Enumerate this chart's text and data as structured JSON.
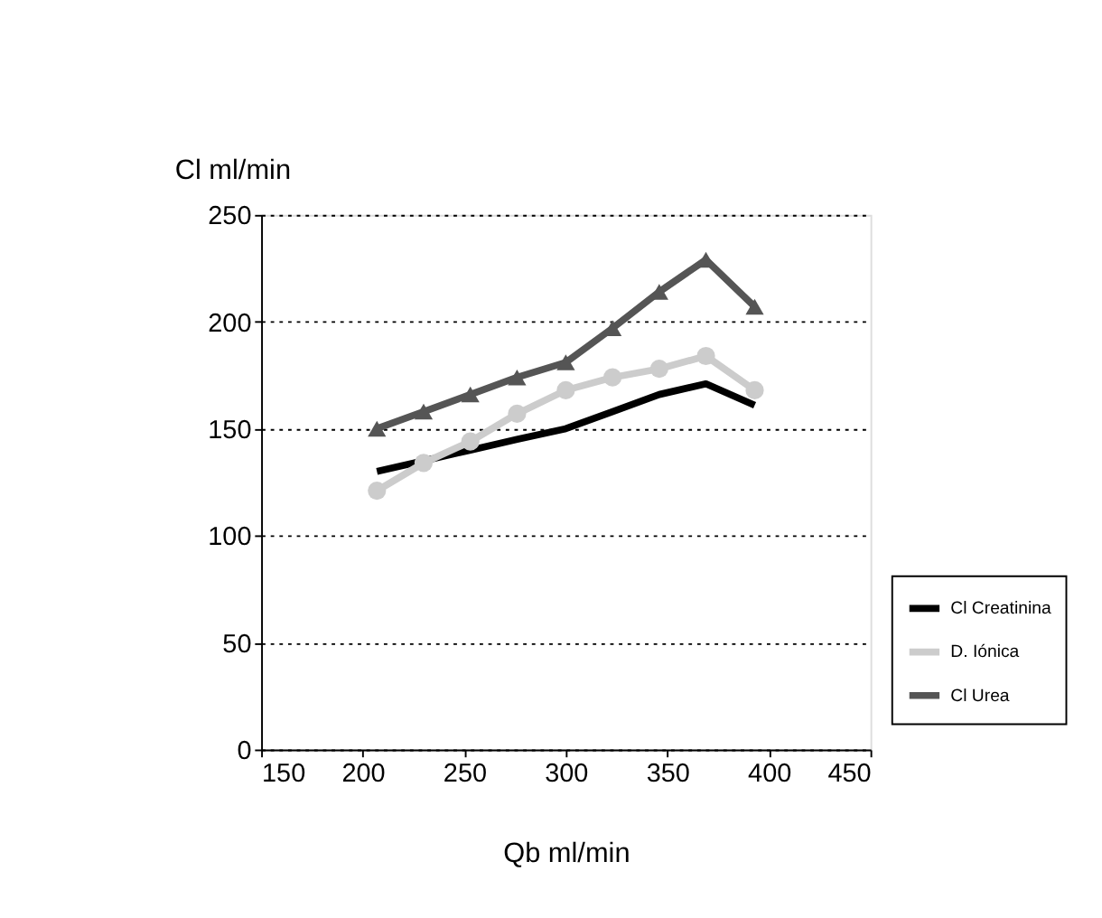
{
  "chart_data": {
    "type": "line",
    "xlabel": "Qb ml/min",
    "ylabel": "Cl ml/min",
    "x": [
      207,
      230,
      253,
      276,
      300,
      323,
      346,
      369,
      393
    ],
    "xlim": [
      150,
      450
    ],
    "xticks": [
      150,
      200,
      250,
      300,
      350,
      400,
      450
    ],
    "ylim": [
      0,
      250
    ],
    "yticks": [
      0,
      50,
      100,
      150,
      200,
      250
    ],
    "grid": "y",
    "legend": "right",
    "line_style": "solid",
    "series": [
      {
        "name": "Cl Creatinina",
        "color": "#000000",
        "marker": "none",
        "values": [
          130,
          135,
          140,
          145,
          150,
          158,
          166,
          171,
          161
        ]
      },
      {
        "name": "D. Iónica",
        "color": "#cccccc",
        "marker": "circle",
        "values": [
          121,
          134,
          144,
          157,
          168,
          174,
          178,
          184,
          168
        ]
      },
      {
        "name": "Cl Urea",
        "color": "#555555",
        "marker": "triangle",
        "values": [
          150,
          158,
          166,
          174,
          181,
          197,
          214,
          229,
          207
        ]
      }
    ]
  }
}
